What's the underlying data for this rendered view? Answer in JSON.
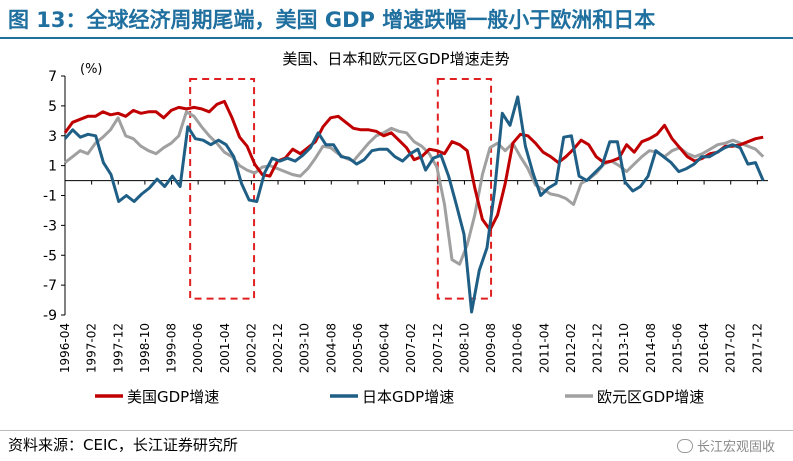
{
  "figure_title": "图 13：全球经济周期尾端，美国 GDP 增速跌幅一般小于欧洲和日本",
  "source_note": "资料来源：CEIC，长江证券研究所",
  "brand_label": "长江宏观固收",
  "chart_data": {
    "type": "line",
    "title": "美国、日本和欧元区GDP增速走势",
    "y_unit": "(%)",
    "ylim": [
      -9,
      7
    ],
    "y_ticks": [
      "7",
      "5",
      "3",
      "1",
      "-1",
      "-3",
      "-5",
      "-7",
      "-9"
    ],
    "y_tick_values": [
      7,
      5,
      3,
      1,
      -1,
      -3,
      -5,
      -7,
      -9
    ],
    "x_ticks": [
      "1996-04",
      "1997-02",
      "1997-12",
      "1998-10",
      "1999-08",
      "2000-06",
      "2001-04",
      "2002-02",
      "2002-12",
      "2003-10",
      "2004-08",
      "2005-06",
      "2006-04",
      "2007-02",
      "2007-12",
      "2008-10",
      "2009-08",
      "2010-06",
      "2011-04",
      "2012-02",
      "2012-12",
      "2013-10",
      "2014-08",
      "2015-06",
      "2016-04",
      "2017-02",
      "2017-12"
    ],
    "highlight_periods": [
      [
        "2000-03",
        "2002-03"
      ],
      [
        "2007-12",
        "2009-08"
      ]
    ],
    "series": [
      {
        "name": "美国GDP增速",
        "color": "#c00000",
        "values": [
          3.2,
          3.9,
          4.1,
          4.3,
          4.3,
          4.6,
          4.4,
          4.5,
          4.3,
          4.7,
          4.5,
          4.6,
          4.6,
          4.2,
          4.7,
          4.9,
          4.8,
          4.9,
          4.8,
          4.6,
          5.1,
          5.3,
          4.2,
          2.9,
          2.3,
          1.1,
          0.4,
          0.3,
          1.3,
          1.5,
          2.1,
          1.8,
          2.2,
          2.6,
          3.6,
          4.2,
          4.3,
          3.9,
          3.5,
          3.4,
          3.4,
          3.3,
          3.0,
          3.2,
          2.7,
          2.2,
          1.4,
          1.6,
          2.1,
          2.0,
          1.8,
          2.6,
          2.4,
          2.0,
          -0.5,
          -2.6,
          -3.3,
          -2.3,
          -0.2,
          2.5,
          3.1,
          3.0,
          2.5,
          1.9,
          1.6,
          1.2,
          1.6,
          2.1,
          2.7,
          2.4,
          1.6,
          1.2,
          1.3,
          1.5,
          2.4,
          1.9,
          2.6,
          2.8,
          3.1,
          3.7,
          2.8,
          2.2,
          1.6,
          1.3,
          1.5,
          1.8,
          1.9,
          2.3,
          2.3,
          2.4,
          2.6,
          2.8,
          2.9
        ]
      },
      {
        "name": "日本GDP增速",
        "color": "#1f5f86",
        "values": [
          2.8,
          3.4,
          2.9,
          3.1,
          3.0,
          1.2,
          0.4,
          -1.4,
          -1.0,
          -1.4,
          -0.9,
          -0.5,
          0.1,
          -0.4,
          0.3,
          -0.4,
          3.6,
          2.8,
          2.7,
          2.4,
          2.7,
          2.4,
          1.6,
          -0.2,
          -1.3,
          -1.4,
          0.5,
          1.5,
          1.3,
          1.5,
          1.3,
          1.7,
          2.2,
          3.2,
          2.4,
          2.4,
          1.6,
          1.5,
          1.1,
          1.4,
          2.0,
          2.1,
          2.1,
          1.6,
          1.3,
          1.8,
          2.1,
          0.7,
          1.5,
          1.7,
          0.3,
          -1.6,
          -3.6,
          -8.8,
          -6.0,
          -4.5,
          -0.6,
          4.5,
          3.7,
          5.6,
          2.3,
          0.5,
          -1.0,
          -0.5,
          -0.2,
          2.9,
          3.0,
          0.3,
          0.0,
          0.5,
          1.0,
          2.6,
          2.6,
          -0.1,
          -0.7,
          -0.4,
          0.3,
          2.0,
          1.6,
          1.2,
          0.6,
          0.8,
          1.1,
          1.6,
          1.6,
          1.9,
          2.2,
          2.4,
          2.2,
          1.1,
          1.2,
          0.0
        ]
      },
      {
        "name": "欧元区GDP增速",
        "color": "#a0a0a0",
        "values": [
          1.2,
          1.6,
          2.0,
          1.8,
          2.5,
          2.9,
          3.4,
          4.2,
          3.0,
          2.8,
          2.3,
          2.0,
          1.8,
          2.2,
          2.5,
          3.0,
          4.6,
          4.3,
          3.6,
          3.0,
          2.5,
          1.9,
          1.6,
          1.0,
          0.7,
          0.5,
          0.9,
          1.0,
          0.8,
          0.6,
          0.4,
          0.3,
          0.8,
          1.5,
          2.3,
          2.2,
          1.8,
          1.5,
          1.3,
          1.9,
          2.5,
          3.0,
          3.2,
          3.5,
          3.3,
          3.2,
          2.6,
          2.3,
          1.8,
          0.9,
          -1.6,
          -5.3,
          -5.6,
          -4.3,
          -2.3,
          0.4,
          2.2,
          2.5,
          2.0,
          2.5,
          1.6,
          0.8,
          -0.3,
          -0.6,
          -0.9,
          -1.0,
          -1.2,
          -1.6,
          -0.2,
          0.1,
          0.5,
          1.1,
          1.3,
          1.0,
          0.6,
          1.1,
          1.6,
          2.0,
          1.9,
          1.6,
          2.0,
          2.2,
          1.8,
          1.6,
          1.8,
          2.1,
          2.4,
          2.5,
          2.7,
          2.5,
          2.3,
          2.1,
          1.6
        ]
      }
    ]
  }
}
